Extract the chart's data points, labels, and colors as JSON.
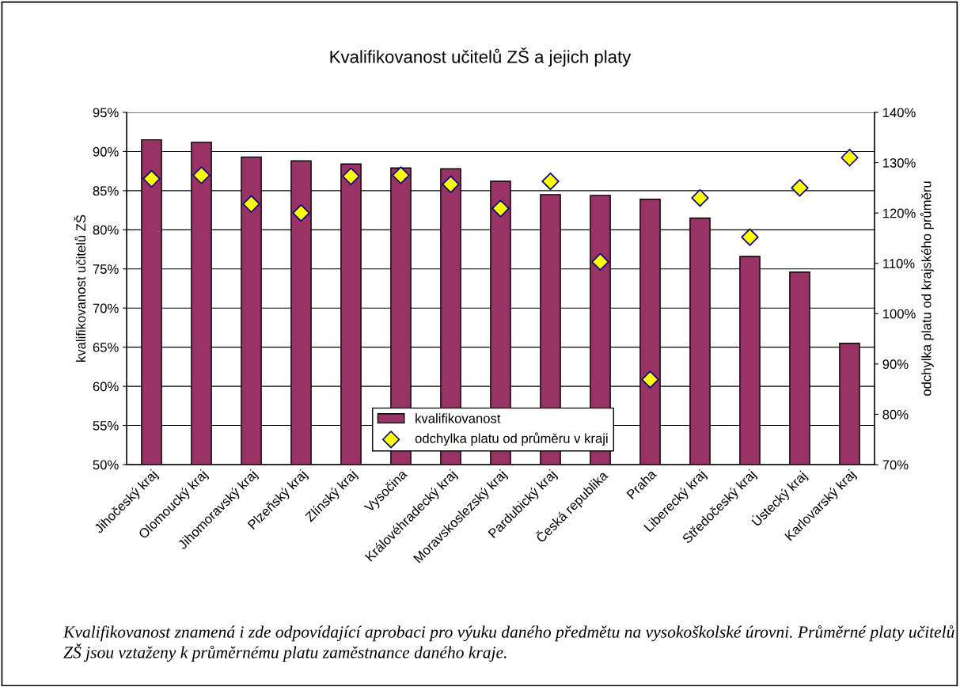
{
  "chart_data": {
    "type": "bar",
    "title": "Kvalifikovanost učitelů ZŠ a jejich platy",
    "ylabel": "kvalifikovanost učitelů ZŠ",
    "y2label": "odchylka platu od krajského průměru",
    "categories": [
      "Jihočeský kraj",
      "Olomoucký kraj",
      "Jihomoravský kraj",
      "Plzeňský kraj",
      "Zlínský kraj",
      "Vysočina",
      "Královéhradecký kraj",
      "Moravskoslezský kraj",
      "Pardubický kraj",
      "Česká republika",
      "Praha",
      "Liberecký kraj",
      "Středočeský kraj",
      "Ústecký kraj",
      "Karlovarský kraj"
    ],
    "series": [
      {
        "name": "kvalifikovanost",
        "color": "#993366",
        "values": [
          91.5,
          91.2,
          89.3,
          88.8,
          88.4,
          87.9,
          87.8,
          86.2,
          84.5,
          84.4,
          83.9,
          81.5,
          76.6,
          74.6,
          65.5
        ]
      },
      {
        "name": "odchylka platu od průměru v kraji",
        "type": "scatter",
        "axis": "y2",
        "color": "#ffff00",
        "marker": "diamond",
        "values": [
          126.8,
          127.5,
          121.8,
          120.0,
          127.3,
          127.5,
          125.7,
          120.9,
          126.3,
          110.3,
          86.9,
          123.0,
          115.2,
          125.0,
          131.0
        ]
      }
    ],
    "ylim": [
      50,
      95
    ],
    "yticks": [
      {
        "value": 50,
        "label": "50%"
      },
      {
        "value": 55,
        "label": "55%"
      },
      {
        "value": 60,
        "label": "60%"
      },
      {
        "value": 65,
        "label": "65%"
      },
      {
        "value": 70,
        "label": "70%"
      },
      {
        "value": 75,
        "label": "75%"
      },
      {
        "value": 80,
        "label": "80%"
      },
      {
        "value": 85,
        "label": "85%"
      },
      {
        "value": 90,
        "label": "90%"
      },
      {
        "value": 95,
        "label": "95%"
      }
    ],
    "y2lim": [
      70,
      140
    ],
    "y2ticks": [
      {
        "value": 70,
        "label": "70%"
      },
      {
        "value": 80,
        "label": "80%"
      },
      {
        "value": 90,
        "label": "90%"
      },
      {
        "value": 100,
        "label": "100%"
      },
      {
        "value": 110,
        "label": "110%"
      },
      {
        "value": 120,
        "label": "120%"
      },
      {
        "value": 130,
        "label": "130%"
      },
      {
        "value": 140,
        "label": "140%"
      }
    ],
    "grid": "y",
    "legend": "bottom",
    "annotations": [
      "Kvalifikovanost znamená i zde odpovídající aprobaci pro výuku daného předmětu na vysokoškolské úrovni. Průměrné platy učitelů ZŠ jsou vztaženy k průměrnému platu zaměstnance daného kraje."
    ]
  }
}
